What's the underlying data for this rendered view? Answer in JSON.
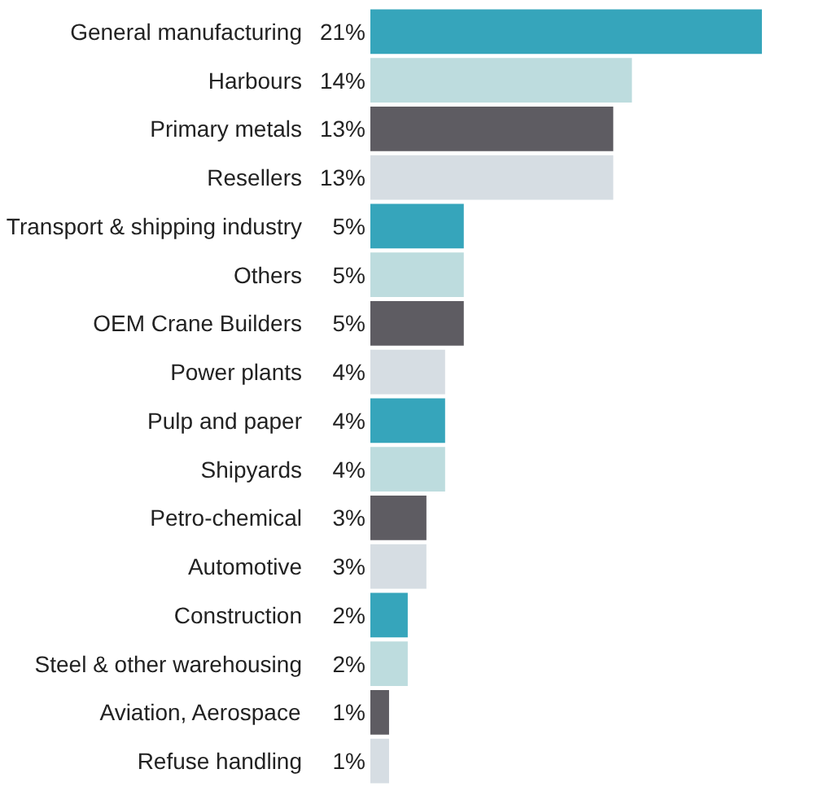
{
  "chart_data": {
    "type": "bar",
    "orientation": "horizontal",
    "categories": [
      "General manufacturing",
      "Harbours",
      "Primary metals",
      "Resellers",
      "Transport & shipping industry",
      "Others",
      "OEM Crane Builders",
      "Power plants",
      "Pulp and paper",
      "Shipyards",
      "Petro-chemical",
      "Automotive",
      "Construction",
      "Steel & other warehousing",
      "Aviation, Aerospace",
      "Refuse handling"
    ],
    "values": [
      21,
      14,
      13,
      13,
      5,
      5,
      5,
      4,
      4,
      4,
      3,
      3,
      2,
      2,
      1,
      1
    ],
    "value_labels": [
      "21%",
      "14%",
      "13%",
      "13%",
      "5%",
      "5%",
      "5%",
      "4%",
      "4%",
      "4%",
      "3%",
      "3%",
      "2%",
      "2%",
      "1%",
      "1%"
    ],
    "colors": [
      "#36a5bb",
      "#bddcde",
      "#5e5c62",
      "#d6dde3",
      "#36a5bb",
      "#bddcde",
      "#5e5c62",
      "#d6dde3",
      "#36a5bb",
      "#bddcde",
      "#5e5c62",
      "#d6dde3",
      "#36a5bb",
      "#bddcde",
      "#5e5c62",
      "#d6dde3"
    ],
    "grid": false
  }
}
